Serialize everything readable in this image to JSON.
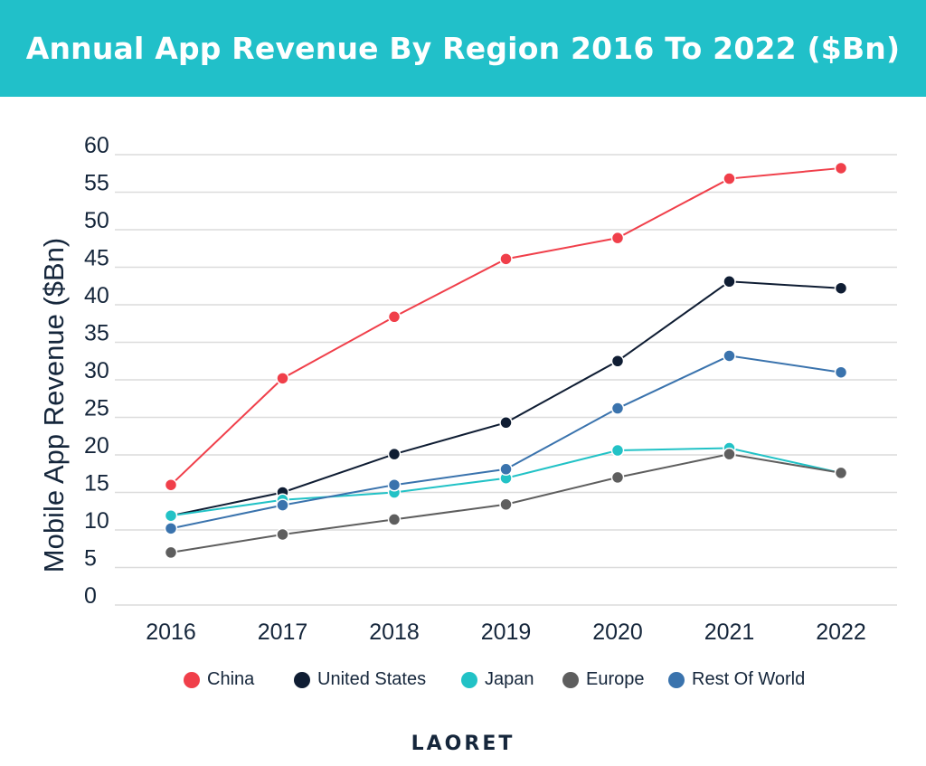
{
  "header": {
    "title": "Annual App Revenue By Region 2016 To 2022 ($Bn)"
  },
  "chart_data": {
    "type": "line",
    "title": "Annual App Revenue By Region 2016 To 2022 ($Bn)",
    "xlabel": "",
    "ylabel": "Mobile App Revenue ($Bn)",
    "x": [
      "2016",
      "2017",
      "2018",
      "2019",
      "2020",
      "2021",
      "2022"
    ],
    "ylim": [
      0,
      60
    ],
    "yticks": [
      0,
      5,
      10,
      15,
      20,
      25,
      30,
      35,
      40,
      45,
      50,
      55,
      60
    ],
    "grid": true,
    "legend_position": "bottom",
    "series": [
      {
        "name": "China",
        "color": "#f03f4a",
        "values": [
          16.0,
          30.2,
          38.4,
          46.1,
          48.9,
          56.8,
          58.2
        ]
      },
      {
        "name": "United States",
        "color": "#0f1d33",
        "values": [
          11.9,
          15.0,
          20.1,
          24.3,
          32.5,
          43.1,
          42.2
        ]
      },
      {
        "name": "Japan",
        "color": "#22c2c6",
        "values": [
          11.9,
          14.0,
          15.0,
          16.9,
          20.6,
          20.9,
          17.6
        ]
      },
      {
        "name": "Europe",
        "color": "#5e5e5e",
        "values": [
          7.0,
          9.4,
          11.4,
          13.4,
          17.0,
          20.1,
          17.6
        ]
      },
      {
        "name": "Rest Of World",
        "color": "#3a73ad",
        "values": [
          10.2,
          13.3,
          16.0,
          18.1,
          26.2,
          33.2,
          31.0
        ]
      }
    ]
  },
  "footer": {
    "logo": "LAORET",
    "logo_icon": "loading-ring-icon"
  }
}
